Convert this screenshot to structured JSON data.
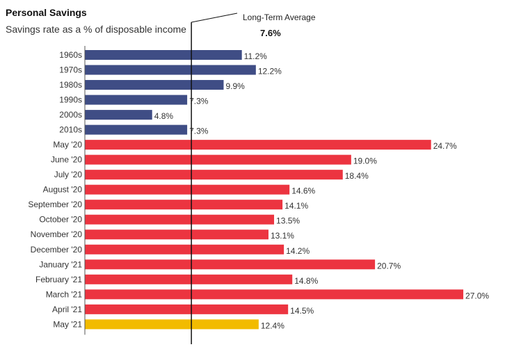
{
  "header": {
    "title": "Personal Savings",
    "subtitle": "Savings rate as a % of disposable income"
  },
  "reference_line": {
    "label": "Long-Term Average",
    "value_label": "7.6%",
    "value": 7.6
  },
  "colors": {
    "decade": "#3f4d85",
    "monthly": "#ec3440",
    "latest": "#f2bb00"
  },
  "chart_data": {
    "type": "bar",
    "orientation": "horizontal",
    "title": "Personal Savings",
    "subtitle": "Savings rate as a % of disposable income",
    "xlabel": "",
    "ylabel": "",
    "xlim": [
      0,
      28
    ],
    "grid": false,
    "categories": [
      "1960s",
      "1970s",
      "1980s",
      "1990s",
      "2000s",
      "2010s",
      "May '20",
      "June '20",
      "July '20",
      "August '20",
      "September '20",
      "October '20",
      "November '20",
      "December '20",
      "January '21",
      "February '21",
      "March '21",
      "April '21",
      "May '21"
    ],
    "values": [
      11.2,
      12.2,
      9.9,
      7.3,
      4.8,
      7.3,
      24.7,
      19.0,
      18.4,
      14.6,
      14.1,
      13.5,
      13.1,
      14.2,
      20.7,
      14.8,
      27.0,
      14.5,
      12.4
    ],
    "value_labels": [
      "11.2%",
      "12.2%",
      "9.9%",
      "7.3%",
      "4.8%",
      "7.3%",
      "24.7%",
      "19.0%",
      "18.4%",
      "14.6%",
      "14.1%",
      "13.5%",
      "13.1%",
      "14.2%",
      "20.7%",
      "14.8%",
      "27.0%",
      "14.5%",
      "12.4%"
    ],
    "groups": [
      "decade",
      "decade",
      "decade",
      "decade",
      "decade",
      "decade",
      "monthly",
      "monthly",
      "monthly",
      "monthly",
      "monthly",
      "monthly",
      "monthly",
      "monthly",
      "monthly",
      "monthly",
      "monthly",
      "monthly",
      "latest"
    ],
    "annotations": [
      {
        "text": "Long-Term Average",
        "value": 7.6,
        "value_label": "7.6%"
      }
    ]
  }
}
